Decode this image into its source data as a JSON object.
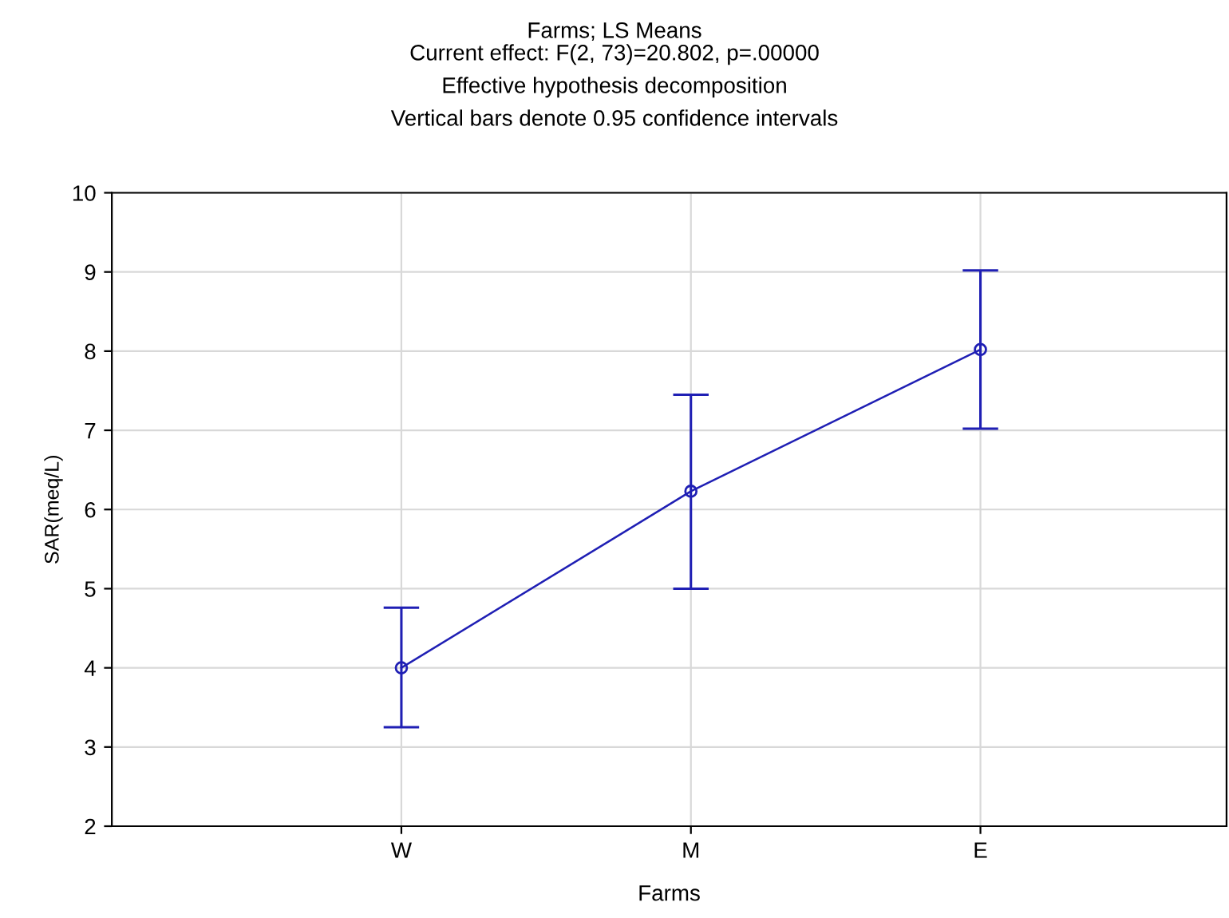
{
  "chart_data": {
    "type": "line",
    "title": "Farms; LS Means",
    "subtitle": "Current effect: F(2, 73)=20.802, p=.00000\nEffective hypothesis decomposition\nVertical bars denote 0.95 confidence intervals",
    "xlabel": "Farms",
    "ylabel": "SAR(meq/L)",
    "categories": [
      "W",
      "M",
      "E"
    ],
    "series": [
      {
        "color": "#1f1fb4",
        "values": [
          4.0,
          6.23,
          8.02
        ],
        "errors": [
          [
            3.25,
            4.76
          ],
          [
            5.0,
            7.45
          ],
          [
            7.02,
            9.02
          ]
        ]
      }
    ],
    "ylim": [
      2,
      10
    ],
    "yticks": [
      2,
      3,
      4,
      5,
      6,
      7,
      8,
      9,
      10
    ],
    "grid": true,
    "marker": "circle",
    "line_style": "solid"
  }
}
